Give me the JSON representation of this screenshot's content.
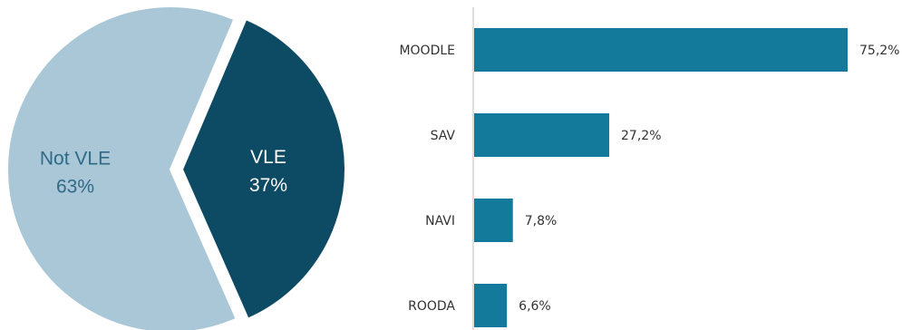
{
  "chart_data": [
    {
      "type": "pie",
      "slices": [
        {
          "label": "Not VLE",
          "value_label": "63%",
          "value": 63,
          "color": "#a9c7d6",
          "text_color": "#2f6a87"
        },
        {
          "label": "VLE",
          "value_label": "37%",
          "value": 37,
          "color": "#0d4a63",
          "text_color": "#ffffff",
          "exploded": true
        }
      ]
    },
    {
      "type": "bar",
      "orientation": "horizontal",
      "categories": [
        "MOODLE",
        "SAV",
        "NAVI",
        "ROODA"
      ],
      "values": [
        75.2,
        27.2,
        7.8,
        6.6
      ],
      "value_labels": [
        "75,2%",
        "27,2%",
        "7,8%",
        "6,6%"
      ],
      "xlim": [
        0,
        75.2
      ],
      "bar_color": "#137a9c",
      "axis_color": "#bfbfbf"
    }
  ]
}
